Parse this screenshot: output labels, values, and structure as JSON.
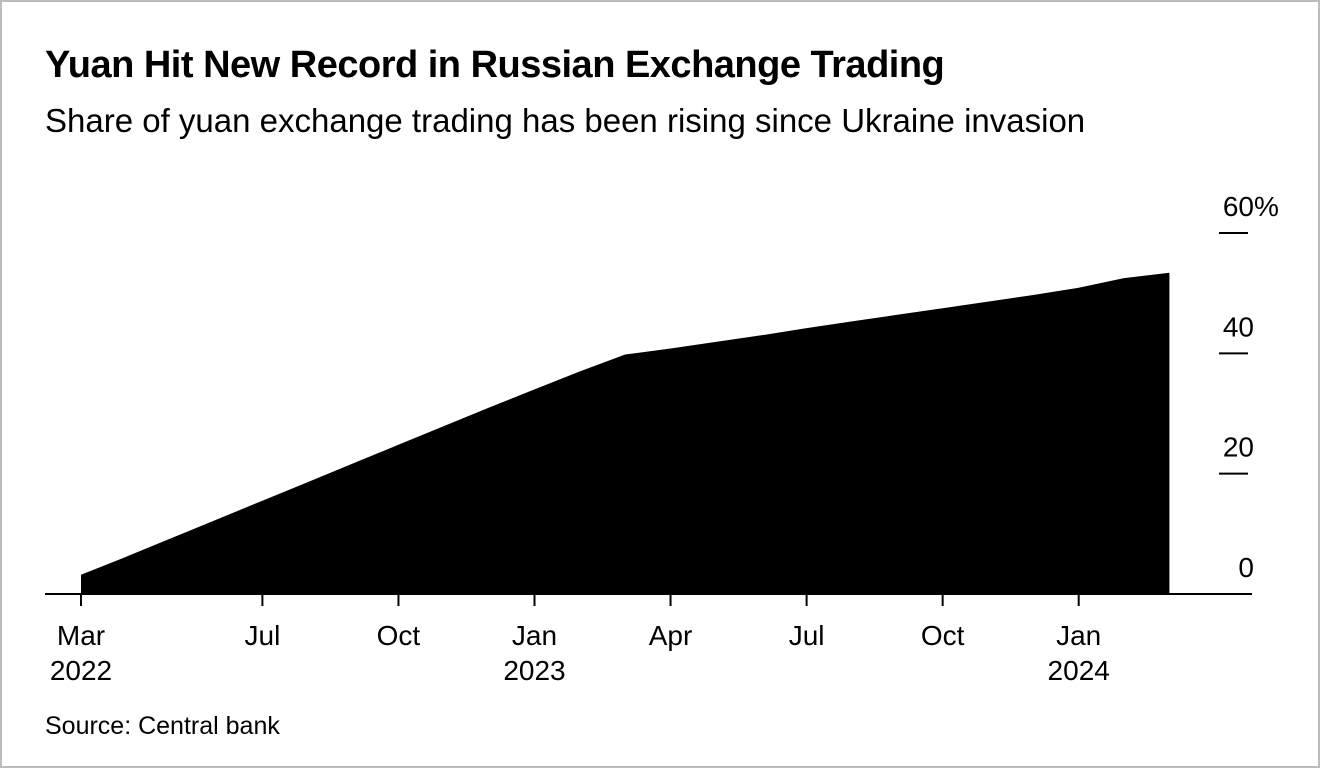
{
  "colors": {
    "area": "#000000",
    "axis": "#000000",
    "text": "#000000",
    "background": "#ffffff",
    "page_border": "#bcbcbc"
  },
  "chart_data": {
    "type": "area",
    "title": "Yuan Hit New Record in Russian Exchange Trading",
    "subtitle": "Share of yuan exchange trading has been rising since Ukraine invasion",
    "source": "Source: Central bank",
    "unit": "%",
    "ylim": [
      0,
      60
    ],
    "grid": false,
    "legend": "none",
    "axis_side": "right",
    "x": [
      "Mar 2022",
      "Apr 2022",
      "May 2022",
      "Jun 2022",
      "Jul 2022",
      "Aug 2022",
      "Sep 2022",
      "Oct 2022",
      "Nov 2022",
      "Dec 2022",
      "Jan 2023",
      "Feb 2023",
      "Mar 2023",
      "Apr 2023",
      "May 2023",
      "Jun 2023",
      "Jul 2023",
      "Aug 2023",
      "Sep 2023",
      "Oct 2023",
      "Nov 2023",
      "Dec 2023",
      "Jan 2024",
      "Feb 2024",
      "Mar 2024"
    ],
    "values": [
      3.2,
      6.2,
      9.3,
      12.4,
      15.5,
      18.6,
      21.7,
      24.8,
      27.9,
      31.0,
      34.0,
      37.0,
      39.8,
      40.8,
      41.9,
      43.0,
      44.2,
      45.3,
      46.4,
      47.5,
      48.6,
      49.7,
      50.9,
      52.5,
      53.4
    ],
    "x_ticks": [
      {
        "month": "Mar",
        "year": "2022",
        "index": 0
      },
      {
        "month": "Jul",
        "year": "",
        "index": 4
      },
      {
        "month": "Oct",
        "year": "",
        "index": 7
      },
      {
        "month": "Jan",
        "year": "2023",
        "index": 10
      },
      {
        "month": "Apr",
        "year": "",
        "index": 13
      },
      {
        "month": "Jul",
        "year": "",
        "index": 16
      },
      {
        "month": "Oct",
        "year": "",
        "index": 19
      },
      {
        "month": "Jan",
        "year": "2024",
        "index": 22
      }
    ],
    "y_ticks": [
      {
        "value": 0,
        "label": "0"
      },
      {
        "value": 20,
        "label": "20"
      },
      {
        "value": 40,
        "label": "40"
      },
      {
        "value": 60,
        "label": "60%"
      }
    ]
  }
}
